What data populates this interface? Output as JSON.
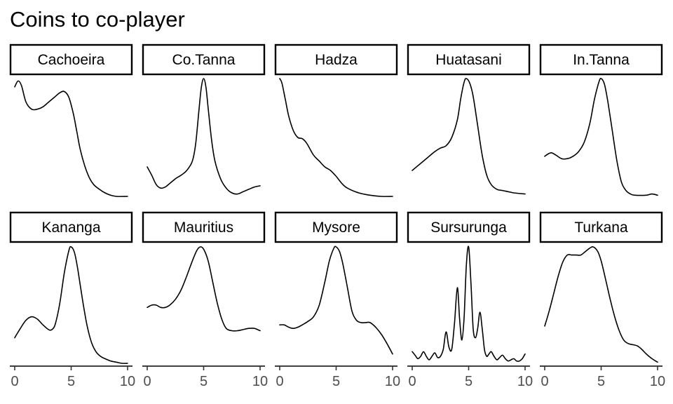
{
  "chart_data": {
    "type": "line",
    "title": "Coins to co-player",
    "xlabel": "",
    "ylabel": "",
    "xlim": [
      0,
      10
    ],
    "x_ticks": [
      0,
      5,
      10
    ],
    "x_tick_labels": [
      "0",
      "5",
      "10"
    ],
    "grid": false,
    "legend": "none",
    "facet_layout": {
      "rows": 2,
      "cols": 5
    },
    "line_color": "#000000",
    "panels": [
      {
        "label": "Cachoeira",
        "y_relative": true,
        "points": [
          [
            0,
            0.93
          ],
          [
            0.3,
            0.98
          ],
          [
            0.6,
            0.94
          ],
          [
            1,
            0.8
          ],
          [
            1.5,
            0.74
          ],
          [
            2,
            0.74
          ],
          [
            2.5,
            0.76
          ],
          [
            3,
            0.8
          ],
          [
            3.5,
            0.84
          ],
          [
            4,
            0.88
          ],
          [
            4.4,
            0.89
          ],
          [
            4.8,
            0.84
          ],
          [
            5.2,
            0.7
          ],
          [
            5.5,
            0.55
          ],
          [
            5.8,
            0.4
          ],
          [
            6.2,
            0.26
          ],
          [
            6.6,
            0.16
          ],
          [
            7,
            0.1
          ],
          [
            7.5,
            0.06
          ],
          [
            8,
            0.03
          ],
          [
            8.5,
            0.01
          ],
          [
            9,
            0.0
          ],
          [
            10,
            0.0
          ]
        ]
      },
      {
        "label": "Co.Tanna",
        "y_relative": true,
        "points": [
          [
            0,
            0.25
          ],
          [
            0.4,
            0.18
          ],
          [
            0.8,
            0.1
          ],
          [
            1.2,
            0.07
          ],
          [
            1.6,
            0.08
          ],
          [
            2,
            0.11
          ],
          [
            2.5,
            0.15
          ],
          [
            3,
            0.18
          ],
          [
            3.5,
            0.22
          ],
          [
            4,
            0.3
          ],
          [
            4.3,
            0.45
          ],
          [
            4.6,
            0.75
          ],
          [
            4.8,
            0.93
          ],
          [
            5,
            1.0
          ],
          [
            5.2,
            0.93
          ],
          [
            5.4,
            0.75
          ],
          [
            5.7,
            0.48
          ],
          [
            6,
            0.3
          ],
          [
            6.5,
            0.15
          ],
          [
            7,
            0.07
          ],
          [
            7.5,
            0.03
          ],
          [
            8,
            0.02
          ],
          [
            8.5,
            0.04
          ],
          [
            9,
            0.06
          ],
          [
            9.5,
            0.08
          ],
          [
            10,
            0.09
          ]
        ]
      },
      {
        "label": "Hadza",
        "y_relative": true,
        "points": [
          [
            0,
            1.0
          ],
          [
            0.2,
            0.96
          ],
          [
            0.5,
            0.82
          ],
          [
            0.8,
            0.68
          ],
          [
            1.2,
            0.56
          ],
          [
            1.6,
            0.5
          ],
          [
            2,
            0.49
          ],
          [
            2.4,
            0.45
          ],
          [
            3,
            0.35
          ],
          [
            3.5,
            0.3
          ],
          [
            4,
            0.25
          ],
          [
            4.5,
            0.22
          ],
          [
            5,
            0.17
          ],
          [
            5.5,
            0.11
          ],
          [
            6,
            0.07
          ],
          [
            7,
            0.03
          ],
          [
            8,
            0.01
          ],
          [
            9,
            0.0
          ],
          [
            10,
            0.0
          ]
        ]
      },
      {
        "label": "Huatasani",
        "y_relative": true,
        "points": [
          [
            0,
            0.22
          ],
          [
            0.5,
            0.26
          ],
          [
            1,
            0.3
          ],
          [
            1.5,
            0.34
          ],
          [
            2,
            0.38
          ],
          [
            2.5,
            0.41
          ],
          [
            3,
            0.43
          ],
          [
            3.5,
            0.5
          ],
          [
            4,
            0.65
          ],
          [
            4.3,
            0.83
          ],
          [
            4.6,
            0.97
          ],
          [
            4.8,
            1.0
          ],
          [
            5.1,
            0.96
          ],
          [
            5.4,
            0.85
          ],
          [
            5.8,
            0.6
          ],
          [
            6.2,
            0.35
          ],
          [
            6.6,
            0.18
          ],
          [
            7,
            0.1
          ],
          [
            7.5,
            0.06
          ],
          [
            8,
            0.05
          ],
          [
            8.5,
            0.04
          ],
          [
            9,
            0.03
          ],
          [
            10,
            0.02
          ]
        ]
      },
      {
        "label": "In.Tanna",
        "y_relative": true,
        "points": [
          [
            0,
            0.34
          ],
          [
            0.3,
            0.36
          ],
          [
            0.6,
            0.37
          ],
          [
            1,
            0.35
          ],
          [
            1.5,
            0.32
          ],
          [
            2,
            0.32
          ],
          [
            2.5,
            0.34
          ],
          [
            3,
            0.38
          ],
          [
            3.5,
            0.46
          ],
          [
            4,
            0.62
          ],
          [
            4.4,
            0.82
          ],
          [
            4.8,
            0.97
          ],
          [
            5,
            1.0
          ],
          [
            5.3,
            0.95
          ],
          [
            5.6,
            0.8
          ],
          [
            6,
            0.55
          ],
          [
            6.4,
            0.3
          ],
          [
            6.8,
            0.12
          ],
          [
            7.2,
            0.05
          ],
          [
            7.6,
            0.02
          ],
          [
            8,
            0.01
          ],
          [
            9,
            0.01
          ],
          [
            9.5,
            0.02
          ],
          [
            10,
            0.01
          ]
        ]
      },
      {
        "label": "Kananga",
        "y_relative": true,
        "points": [
          [
            0,
            0.22
          ],
          [
            0.5,
            0.3
          ],
          [
            1,
            0.37
          ],
          [
            1.5,
            0.4
          ],
          [
            2,
            0.38
          ],
          [
            2.5,
            0.33
          ],
          [
            3,
            0.29
          ],
          [
            3.3,
            0.29
          ],
          [
            3.6,
            0.34
          ],
          [
            4,
            0.52
          ],
          [
            4.4,
            0.78
          ],
          [
            4.8,
            0.97
          ],
          [
            5,
            1.0
          ],
          [
            5.3,
            0.95
          ],
          [
            5.6,
            0.8
          ],
          [
            6,
            0.55
          ],
          [
            6.4,
            0.33
          ],
          [
            6.8,
            0.18
          ],
          [
            7.2,
            0.1
          ],
          [
            7.6,
            0.06
          ],
          [
            8,
            0.04
          ],
          [
            8.5,
            0.02
          ],
          [
            9,
            0.01
          ],
          [
            9.5,
            0.0
          ],
          [
            10,
            0.0
          ]
        ]
      },
      {
        "label": "Mauritius",
        "y_relative": true,
        "points": [
          [
            0,
            0.48
          ],
          [
            0.4,
            0.5
          ],
          [
            0.8,
            0.5
          ],
          [
            1.2,
            0.48
          ],
          [
            1.6,
            0.48
          ],
          [
            2,
            0.5
          ],
          [
            2.5,
            0.55
          ],
          [
            3,
            0.63
          ],
          [
            3.5,
            0.75
          ],
          [
            4,
            0.88
          ],
          [
            4.4,
            0.97
          ],
          [
            4.7,
            1.0
          ],
          [
            5,
            0.98
          ],
          [
            5.4,
            0.88
          ],
          [
            5.8,
            0.7
          ],
          [
            6.2,
            0.52
          ],
          [
            6.6,
            0.38
          ],
          [
            7,
            0.3
          ],
          [
            7.5,
            0.28
          ],
          [
            8,
            0.28
          ],
          [
            8.5,
            0.29
          ],
          [
            9,
            0.3
          ],
          [
            9.5,
            0.3
          ],
          [
            10,
            0.28
          ]
        ]
      },
      {
        "label": "Mysore",
        "y_relative": true,
        "points": [
          [
            0,
            0.33
          ],
          [
            0.4,
            0.33
          ],
          [
            0.8,
            0.31
          ],
          [
            1.2,
            0.3
          ],
          [
            1.6,
            0.31
          ],
          [
            2,
            0.33
          ],
          [
            2.5,
            0.36
          ],
          [
            3,
            0.4
          ],
          [
            3.5,
            0.5
          ],
          [
            4,
            0.7
          ],
          [
            4.4,
            0.88
          ],
          [
            4.8,
            0.99
          ],
          [
            5,
            1.0
          ],
          [
            5.3,
            0.96
          ],
          [
            5.6,
            0.85
          ],
          [
            6,
            0.65
          ],
          [
            6.4,
            0.45
          ],
          [
            6.8,
            0.37
          ],
          [
            7.2,
            0.35
          ],
          [
            7.6,
            0.35
          ],
          [
            8,
            0.35
          ],
          [
            8.5,
            0.31
          ],
          [
            9,
            0.25
          ],
          [
            9.5,
            0.17
          ],
          [
            10,
            0.08
          ]
        ]
      },
      {
        "label": "Sursurunga",
        "y_relative": true,
        "points": [
          [
            0,
            0.1
          ],
          [
            0.25,
            0.07
          ],
          [
            0.5,
            0.04
          ],
          [
            0.75,
            0.06
          ],
          [
            1,
            0.1
          ],
          [
            1.25,
            0.06
          ],
          [
            1.5,
            0.03
          ],
          [
            1.75,
            0.06
          ],
          [
            2,
            0.09
          ],
          [
            2.25,
            0.05
          ],
          [
            2.5,
            0.06
          ],
          [
            2.75,
            0.12
          ],
          [
            3,
            0.27
          ],
          [
            3.25,
            0.14
          ],
          [
            3.5,
            0.12
          ],
          [
            3.75,
            0.35
          ],
          [
            4,
            0.65
          ],
          [
            4.2,
            0.38
          ],
          [
            4.4,
            0.2
          ],
          [
            4.6,
            0.4
          ],
          [
            4.8,
            0.85
          ],
          [
            5,
            1.0
          ],
          [
            5.2,
            0.7
          ],
          [
            5.4,
            0.3
          ],
          [
            5.6,
            0.22
          ],
          [
            5.8,
            0.3
          ],
          [
            6,
            0.44
          ],
          [
            6.2,
            0.3
          ],
          [
            6.4,
            0.12
          ],
          [
            6.6,
            0.06
          ],
          [
            6.8,
            0.08
          ],
          [
            7,
            0.1
          ],
          [
            7.25,
            0.06
          ],
          [
            7.5,
            0.03
          ],
          [
            7.75,
            0.05
          ],
          [
            8,
            0.07
          ],
          [
            8.25,
            0.04
          ],
          [
            8.5,
            0.02
          ],
          [
            8.75,
            0.03
          ],
          [
            9,
            0.04
          ],
          [
            9.25,
            0.02
          ],
          [
            9.5,
            0.02
          ],
          [
            9.75,
            0.04
          ],
          [
            10,
            0.08
          ]
        ]
      },
      {
        "label": "Turkana",
        "y_relative": true,
        "points": [
          [
            0,
            0.32
          ],
          [
            0.4,
            0.45
          ],
          [
            0.8,
            0.6
          ],
          [
            1.2,
            0.75
          ],
          [
            1.6,
            0.87
          ],
          [
            2,
            0.93
          ],
          [
            2.4,
            0.93
          ],
          [
            2.8,
            0.93
          ],
          [
            3.2,
            0.93
          ],
          [
            3.6,
            0.96
          ],
          [
            4,
            0.99
          ],
          [
            4.3,
            1.0
          ],
          [
            4.7,
            0.96
          ],
          [
            5,
            0.88
          ],
          [
            5.4,
            0.72
          ],
          [
            5.8,
            0.55
          ],
          [
            6.2,
            0.4
          ],
          [
            6.6,
            0.28
          ],
          [
            7,
            0.2
          ],
          [
            7.4,
            0.17
          ],
          [
            7.8,
            0.16
          ],
          [
            8.2,
            0.15
          ],
          [
            8.6,
            0.12
          ],
          [
            9,
            0.08
          ],
          [
            9.5,
            0.04
          ],
          [
            10,
            0.01
          ]
        ]
      }
    ]
  }
}
